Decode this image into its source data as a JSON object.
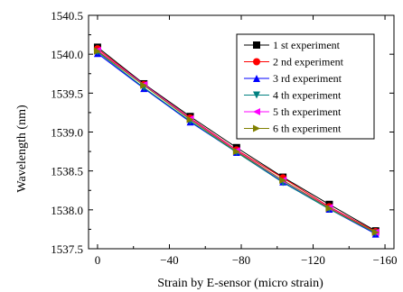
{
  "chart_data": {
    "type": "line",
    "title": "",
    "xlabel": "Strain by E-sensor (micro strain)",
    "ylabel": "Wavelength (nm)",
    "xlim": [
      5,
      -165
    ],
    "ylim": [
      1537.5,
      1540.5
    ],
    "x_ticks": [
      0,
      -40,
      -80,
      -120,
      -160
    ],
    "x_tick_labels": [
      "0",
      "−40",
      "−80",
      "−120",
      "−160"
    ],
    "y_ticks": [
      1537.5,
      1538.0,
      1538.5,
      1539.0,
      1539.5,
      1540.0,
      1540.5
    ],
    "y_tick_labels": [
      "1537.5",
      "1538.0",
      "1538.5",
      "1539.0",
      "1539.5",
      "1540.0",
      "1540.5"
    ],
    "x": [
      0,
      -25.8,
      -51.6,
      -77.4,
      -103.2,
      -129.0,
      -154.8
    ],
    "legend_position": "top-right",
    "series": [
      {
        "name": "1 st experiment",
        "color": "#000000",
        "marker": "square",
        "values": [
          1540.09,
          1539.62,
          1539.2,
          1538.8,
          1538.42,
          1538.07,
          1537.73
        ]
      },
      {
        "name": "2 nd experiment",
        "color": "#ff0000",
        "marker": "circle",
        "values": [
          1540.07,
          1539.61,
          1539.18,
          1538.77,
          1538.41,
          1538.04,
          1537.72
        ]
      },
      {
        "name": "3 rd experiment",
        "color": "#0000ff",
        "marker": "triangle-up",
        "values": [
          1540.01,
          1539.56,
          1539.13,
          1538.74,
          1538.36,
          1538.01,
          1537.69
        ]
      },
      {
        "name": "4 th experiment",
        "color": "#008080",
        "marker": "triangle-down",
        "values": [
          1540.03,
          1539.57,
          1539.14,
          1538.74,
          1538.35,
          1538.01,
          1537.7
        ]
      },
      {
        "name": "5 th experiment",
        "color": "#ff00ff",
        "marker": "triangle-left",
        "values": [
          1540.05,
          1539.61,
          1539.17,
          1538.76,
          1538.38,
          1538.03,
          1537.71
        ]
      },
      {
        "name": "6 th experiment",
        "color": "#808000",
        "marker": "triangle-right",
        "values": [
          1540.04,
          1539.6,
          1539.16,
          1538.75,
          1538.38,
          1538.02,
          1537.71
        ]
      }
    ]
  }
}
